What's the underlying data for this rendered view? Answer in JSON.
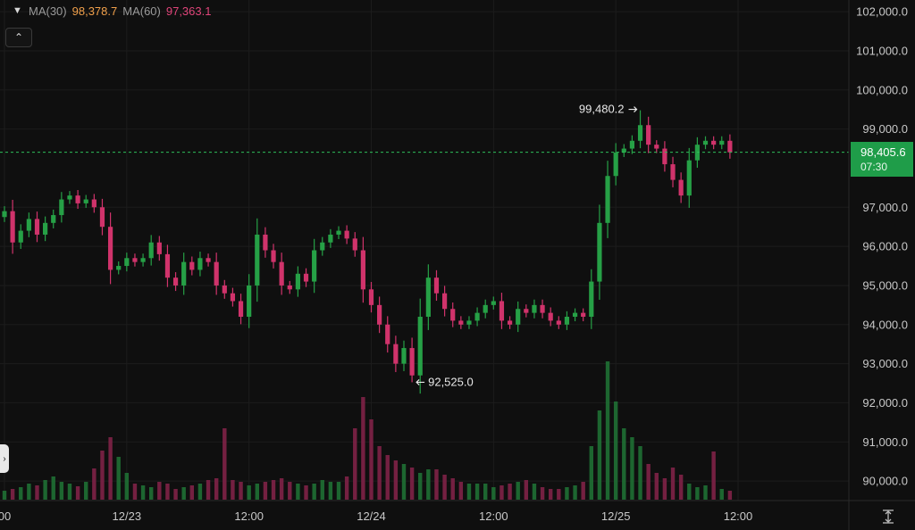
{
  "legend": {
    "ma30_label": "MA(30)",
    "ma30_value": "98,378.7",
    "ma60_label": "MA(60)",
    "ma60_value": "97,363.1"
  },
  "icons": {
    "legend_toggle": "chevron-down-icon",
    "collapse": "chevron-up-icon",
    "side_handle": "chevron-right-icon",
    "bottom_tool": "scale-icon"
  },
  "colors": {
    "up": "#26a046",
    "down": "#d0336b",
    "ma30": "#f0a04b",
    "ma60": "#e0457a",
    "badge": "#1f9d49",
    "background": "#0f0f0f"
  },
  "price_badge": {
    "price": "98,405.6",
    "countdown": "07:30"
  },
  "annotations": {
    "high_label": "99,480.2",
    "low_label": "92,525.0"
  },
  "chart_data": {
    "type": "candlestick",
    "y_axis": {
      "min": 89500,
      "max": 102300,
      "ticks": [
        102000,
        101000,
        100000,
        99000,
        97000,
        96000,
        95000,
        94000,
        93000,
        92000,
        91000,
        90000
      ],
      "tick_labels": [
        "102,000.0",
        "101,000.0",
        "100,000.0",
        "99,000.0",
        "97,000.0",
        "96,000.0",
        "95,000.0",
        "94,000.0",
        "93,000.0",
        "92,000.0",
        "91,000.0",
        "90,000.0"
      ]
    },
    "x_axis": {
      "min": 0,
      "max": 90,
      "ticks": [
        0,
        15,
        30,
        45,
        60,
        75,
        90
      ],
      "tick_labels": [
        "00",
        "12/23",
        "12:00",
        "12/24",
        "12:00",
        "12/25",
        "12:00"
      ]
    },
    "current_price": 98405.6,
    "high": {
      "index": 78,
      "value": 99480.2
    },
    "low": {
      "index": 50,
      "value": 92525.0
    },
    "closes": [
      96900,
      96100,
      96400,
      96700,
      96300,
      96600,
      96800,
      97200,
      97300,
      97100,
      97200,
      97000,
      96500,
      95400,
      95500,
      95700,
      95600,
      95700,
      96100,
      95800,
      95200,
      95000,
      95600,
      95400,
      95700,
      95600,
      95000,
      94800,
      94600,
      94200,
      95000,
      96300,
      95900,
      95600,
      95000,
      94900,
      95300,
      95100,
      95900,
      96100,
      96300,
      96400,
      96200,
      95900,
      94900,
      94500,
      94000,
      93500,
      93000,
      93400,
      92700,
      94200,
      95200,
      94800,
      94400,
      94100,
      94000,
      94100,
      94300,
      94500,
      94600,
      94100,
      94000,
      94400,
      94300,
      94500,
      94300,
      94100,
      94000,
      94200,
      94300,
      94200,
      95100,
      96600,
      97800,
      98400,
      98500,
      98700,
      99100,
      98600,
      98500,
      98100,
      97700,
      97300,
      98200,
      98600,
      98700,
      98600,
      98700,
      98405.6
    ],
    "volumes": [
      10,
      12,
      14,
      18,
      16,
      22,
      26,
      20,
      18,
      15,
      20,
      35,
      55,
      70,
      48,
      30,
      18,
      16,
      14,
      20,
      18,
      12,
      14,
      16,
      18,
      22,
      24,
      80,
      22,
      20,
      16,
      18,
      20,
      22,
      24,
      20,
      18,
      16,
      18,
      22,
      20,
      20,
      26,
      80,
      115,
      90,
      60,
      50,
      44,
      40,
      36,
      30,
      34,
      34,
      28,
      24,
      20,
      18,
      18,
      18,
      14,
      16,
      18,
      20,
      22,
      18,
      14,
      12,
      12,
      14,
      16,
      20,
      60,
      100,
      155,
      110,
      80,
      70,
      60,
      40,
      30,
      24,
      36,
      28,
      18,
      14,
      16,
      54,
      12,
      10
    ]
  }
}
